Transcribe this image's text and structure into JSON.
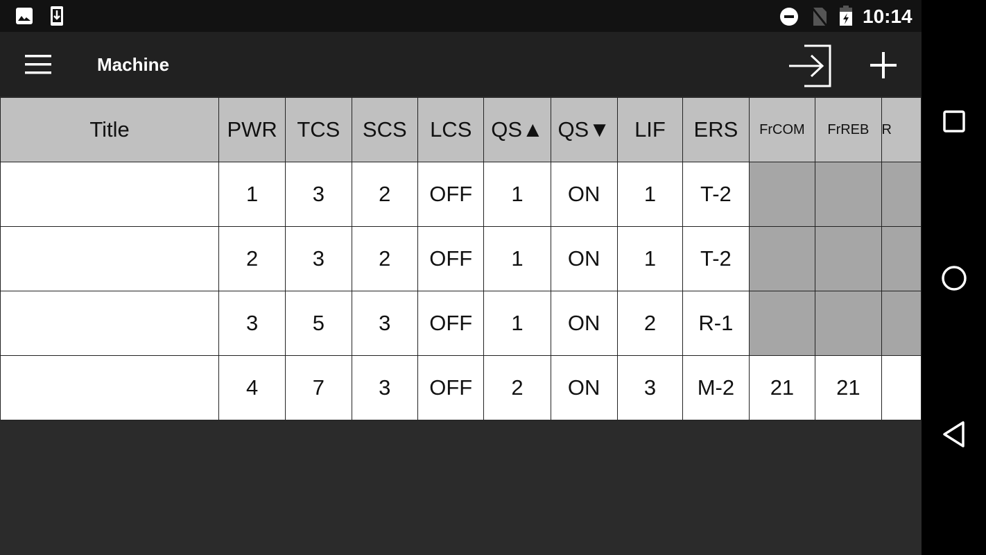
{
  "status_bar": {
    "time": "10:14",
    "icons": [
      "image-icon",
      "download-icon",
      "do-not-disturb-icon",
      "no-sim-icon",
      "battery-charging-icon"
    ]
  },
  "app_bar": {
    "title": "Machine",
    "menu_icon": "hamburger-menu-icon",
    "actions": [
      "login-icon",
      "add-icon"
    ]
  },
  "table": {
    "headers": [
      "Title",
      "PWR",
      "TCS",
      "SCS",
      "LCS",
      "QS▲",
      "QS▼",
      "LIF",
      "ERS",
      "FrCOM",
      "FrREB",
      "R"
    ],
    "rows": [
      [
        "",
        "1",
        "3",
        "2",
        "OFF",
        "1",
        "ON",
        "1",
        "T-2",
        "",
        "",
        ""
      ],
      [
        "",
        "2",
        "3",
        "2",
        "OFF",
        "1",
        "ON",
        "1",
        "T-2",
        "",
        "",
        ""
      ],
      [
        "",
        "3",
        "5",
        "3",
        "OFF",
        "1",
        "ON",
        "2",
        "R-1",
        "",
        "",
        ""
      ],
      [
        "",
        "4",
        "7",
        "3",
        "OFF",
        "2",
        "ON",
        "3",
        "M-2",
        "21",
        "21",
        ""
      ]
    ],
    "gray_rows": [
      0,
      1,
      2
    ]
  },
  "nav_bar": {
    "icons": [
      "recents-icon",
      "home-icon",
      "back-icon"
    ]
  }
}
